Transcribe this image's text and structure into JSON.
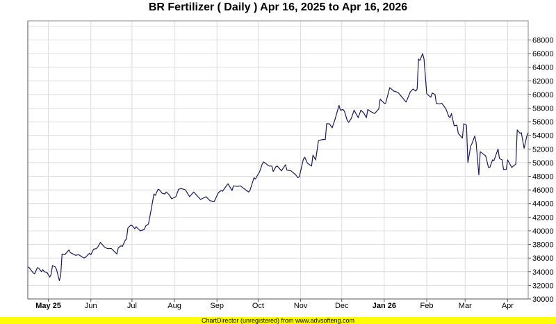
{
  "chart_data": {
    "type": "line",
    "title": "BR Fertilizer ( Daily ) Apr 16, 2025 to Apr 16, 2026",
    "x_range": [
      "2025-04-16",
      "2026-04-16"
    ],
    "ylim": [
      30000,
      70800
    ],
    "y_ticks": [
      30000,
      32000,
      34000,
      36000,
      38000,
      40000,
      42000,
      44000,
      46000,
      48000,
      50000,
      52000,
      54000,
      56000,
      58000,
      60000,
      62000,
      64000,
      66000,
      68000
    ],
    "y_axis_side": "right",
    "x_ticks": [
      {
        "date": "2025-05-01",
        "label": "May 25",
        "bold": true
      },
      {
        "date": "2025-06-01",
        "label": "Jun",
        "bold": false
      },
      {
        "date": "2025-07-01",
        "label": "Jul",
        "bold": false
      },
      {
        "date": "2025-08-01",
        "label": "Aug",
        "bold": false
      },
      {
        "date": "2025-09-01",
        "label": "Sep",
        "bold": false
      },
      {
        "date": "2025-10-01",
        "label": "Oct",
        "bold": false
      },
      {
        "date": "2025-11-01",
        "label": "Nov",
        "bold": false
      },
      {
        "date": "2025-12-01",
        "label": "Dec",
        "bold": false
      },
      {
        "date": "2026-01-01",
        "label": "Jan 26",
        "bold": true
      },
      {
        "date": "2026-02-01",
        "label": "Feb",
        "bold": false
      },
      {
        "date": "2026-03-01",
        "label": "Mar",
        "bold": false
      },
      {
        "date": "2026-04-01",
        "label": "Apr",
        "bold": false
      }
    ],
    "grid": true,
    "line_color": "#1a1a5a",
    "points": [
      [
        "2025-04-16",
        34700
      ],
      [
        "2025-04-17",
        34600
      ],
      [
        "2025-04-20",
        33800
      ],
      [
        "2025-04-21",
        33700
      ],
      [
        "2025-04-23",
        34600
      ],
      [
        "2025-04-24",
        34500
      ],
      [
        "2025-04-26",
        34000
      ],
      [
        "2025-04-27",
        34300
      ],
      [
        "2025-04-28",
        34000
      ],
      [
        "2025-04-30",
        33900
      ],
      [
        "2025-05-02",
        33200
      ],
      [
        "2025-05-03",
        33600
      ],
      [
        "2025-05-04",
        34900
      ],
      [
        "2025-05-06",
        34700
      ],
      [
        "2025-05-07",
        34300
      ],
      [
        "2025-05-09",
        32700
      ],
      [
        "2025-05-10",
        33400
      ],
      [
        "2025-05-11",
        36600
      ],
      [
        "2025-05-13",
        36500
      ],
      [
        "2025-05-16",
        37200
      ],
      [
        "2025-05-17",
        36800
      ],
      [
        "2025-05-21",
        36400
      ],
      [
        "2025-05-23",
        36500
      ],
      [
        "2025-05-27",
        36000
      ],
      [
        "2025-05-28",
        36100
      ],
      [
        "2025-05-31",
        36700
      ],
      [
        "2025-06-01",
        36500
      ],
      [
        "2025-06-03",
        37300
      ],
      [
        "2025-06-05",
        37400
      ],
      [
        "2025-06-06",
        37600
      ],
      [
        "2025-06-08",
        38300
      ],
      [
        "2025-06-11",
        37600
      ],
      [
        "2025-06-13",
        37400
      ],
      [
        "2025-06-16",
        37400
      ],
      [
        "2025-06-18",
        37000
      ],
      [
        "2025-06-20",
        36600
      ],
      [
        "2025-06-21",
        37500
      ],
      [
        "2025-06-23",
        37800
      ],
      [
        "2025-06-24",
        37700
      ],
      [
        "2025-06-26",
        38600
      ],
      [
        "2025-06-27",
        38800
      ],
      [
        "2025-06-28",
        40400
      ],
      [
        "2025-06-30",
        40800
      ],
      [
        "2025-07-01",
        40800
      ],
      [
        "2025-07-03",
        40300
      ],
      [
        "2025-07-04",
        40600
      ],
      [
        "2025-07-07",
        40000
      ],
      [
        "2025-07-10",
        40200
      ],
      [
        "2025-07-11",
        40700
      ],
      [
        "2025-07-13",
        41000
      ],
      [
        "2025-07-15",
        43100
      ],
      [
        "2025-07-17",
        45400
      ],
      [
        "2025-07-18",
        45200
      ],
      [
        "2025-07-20",
        46100
      ],
      [
        "2025-07-21",
        46000
      ],
      [
        "2025-07-23",
        45500
      ],
      [
        "2025-07-25",
        45400
      ],
      [
        "2025-07-26",
        45700
      ],
      [
        "2025-07-28",
        45300
      ],
      [
        "2025-07-30",
        44700
      ],
      [
        "2025-08-02",
        45000
      ],
      [
        "2025-08-04",
        46100
      ],
      [
        "2025-08-06",
        46200
      ],
      [
        "2025-08-09",
        46000
      ],
      [
        "2025-08-12",
        45000
      ],
      [
        "2025-08-15",
        45700
      ],
      [
        "2025-08-20",
        44600
      ],
      [
        "2025-08-22",
        44800
      ],
      [
        "2025-08-24",
        45000
      ],
      [
        "2025-08-27",
        44400
      ],
      [
        "2025-08-30",
        44300
      ],
      [
        "2025-09-02",
        45600
      ],
      [
        "2025-09-04",
        45900
      ],
      [
        "2025-09-05",
        45800
      ],
      [
        "2025-09-09",
        46900
      ],
      [
        "2025-09-12",
        45900
      ],
      [
        "2025-09-13",
        46600
      ],
      [
        "2025-09-16",
        46500
      ],
      [
        "2025-09-18",
        46600
      ],
      [
        "2025-09-22",
        46000
      ],
      [
        "2025-09-24",
        45700
      ],
      [
        "2025-09-25",
        45900
      ],
      [
        "2025-09-28",
        47800
      ],
      [
        "2025-09-29",
        47600
      ],
      [
        "2025-10-01",
        48300
      ],
      [
        "2025-10-02",
        48600
      ],
      [
        "2025-10-04",
        49800
      ],
      [
        "2025-10-05",
        50100
      ],
      [
        "2025-10-09",
        49500
      ],
      [
        "2025-10-11",
        49500
      ],
      [
        "2025-10-12",
        48700
      ],
      [
        "2025-10-14",
        49400
      ],
      [
        "2025-10-15",
        49500
      ],
      [
        "2025-10-18",
        48800
      ],
      [
        "2025-10-21",
        49700
      ],
      [
        "2025-10-22",
        48900
      ],
      [
        "2025-10-25",
        48800
      ],
      [
        "2025-10-28",
        48300
      ],
      [
        "2025-10-30",
        47800
      ],
      [
        "2025-10-31",
        47900
      ],
      [
        "2025-11-03",
        50500
      ],
      [
        "2025-11-04",
        50800
      ],
      [
        "2025-11-06",
        49900
      ],
      [
        "2025-11-09",
        49500
      ],
      [
        "2025-11-10",
        51100
      ],
      [
        "2025-11-12",
        50400
      ],
      [
        "2025-11-14",
        53200
      ],
      [
        "2025-11-17",
        53400
      ],
      [
        "2025-11-19",
        53400
      ],
      [
        "2025-11-20",
        55700
      ],
      [
        "2025-11-22",
        55700
      ],
      [
        "2025-11-24",
        55100
      ],
      [
        "2025-11-26",
        56300
      ],
      [
        "2025-11-29",
        58400
      ],
      [
        "2025-11-30",
        57700
      ],
      [
        "2025-12-02",
        57800
      ],
      [
        "2025-12-03",
        57500
      ],
      [
        "2025-12-05",
        56200
      ],
      [
        "2025-12-06",
        55900
      ],
      [
        "2025-12-08",
        56500
      ],
      [
        "2025-12-10",
        57700
      ],
      [
        "2025-12-13",
        56600
      ],
      [
        "2025-12-15",
        57700
      ],
      [
        "2025-12-17",
        57300
      ],
      [
        "2025-12-19",
        56600
      ],
      [
        "2025-12-20",
        57800
      ],
      [
        "2025-12-22",
        57500
      ],
      [
        "2025-12-25",
        57200
      ],
      [
        "2025-12-28",
        57900
      ],
      [
        "2025-12-29",
        59300
      ],
      [
        "2026-01-01",
        58700
      ],
      [
        "2026-01-02",
        58700
      ],
      [
        "2026-01-05",
        61000
      ],
      [
        "2026-01-08",
        60500
      ],
      [
        "2026-01-11",
        60300
      ],
      [
        "2026-01-14",
        59600
      ],
      [
        "2026-01-16",
        59100
      ],
      [
        "2026-01-17",
        58900
      ],
      [
        "2026-01-20",
        60400
      ],
      [
        "2026-01-22",
        60800
      ],
      [
        "2026-01-24",
        60500
      ],
      [
        "2026-01-25",
        60800
      ],
      [
        "2026-01-26",
        65200
      ],
      [
        "2026-01-27",
        65000
      ],
      [
        "2026-01-29",
        66000
      ],
      [
        "2026-01-30",
        65200
      ],
      [
        "2026-02-01",
        60100
      ],
      [
        "2026-02-04",
        59600
      ],
      [
        "2026-02-05",
        60200
      ],
      [
        "2026-02-07",
        60000
      ],
      [
        "2026-02-08",
        58700
      ],
      [
        "2026-02-10",
        58600
      ],
      [
        "2026-02-12",
        58700
      ],
      [
        "2026-02-15",
        57900
      ],
      [
        "2026-02-17",
        56800
      ],
      [
        "2026-02-18",
        56600
      ],
      [
        "2026-02-19",
        57200
      ],
      [
        "2026-02-21",
        55400
      ],
      [
        "2026-02-23",
        55500
      ],
      [
        "2026-02-24",
        54300
      ],
      [
        "2026-02-27",
        53600
      ],
      [
        "2026-02-28",
        55700
      ],
      [
        "2026-03-02",
        55500
      ],
      [
        "2026-03-03",
        50000
      ],
      [
        "2026-03-05",
        52400
      ],
      [
        "2026-03-06",
        52800
      ],
      [
        "2026-03-08",
        53900
      ],
      [
        "2026-03-09",
        53000
      ],
      [
        "2026-03-11",
        48200
      ],
      [
        "2026-03-12",
        51600
      ],
      [
        "2026-03-14",
        51300
      ],
      [
        "2026-03-16",
        51000
      ],
      [
        "2026-03-18",
        49300
      ],
      [
        "2026-03-19",
        49300
      ],
      [
        "2026-03-21",
        50400
      ],
      [
        "2026-03-22",
        50300
      ],
      [
        "2026-03-25",
        52000
      ],
      [
        "2026-03-26",
        50600
      ],
      [
        "2026-03-28",
        50400
      ],
      [
        "2026-03-29",
        49000
      ],
      [
        "2026-03-31",
        49000
      ],
      [
        "2026-04-01",
        50400
      ],
      [
        "2026-04-04",
        49300
      ],
      [
        "2026-04-07",
        49800
      ],
      [
        "2026-04-08",
        54800
      ],
      [
        "2026-04-10",
        54300
      ],
      [
        "2026-04-11",
        54400
      ],
      [
        "2026-04-13",
        52100
      ],
      [
        "2026-04-15",
        53900
      ],
      [
        "2026-04-16",
        54400
      ]
    ]
  },
  "footer": {
    "text": "ChartDirector (unregistered) from www.advsofteng.com",
    "background": "#ffff00"
  }
}
